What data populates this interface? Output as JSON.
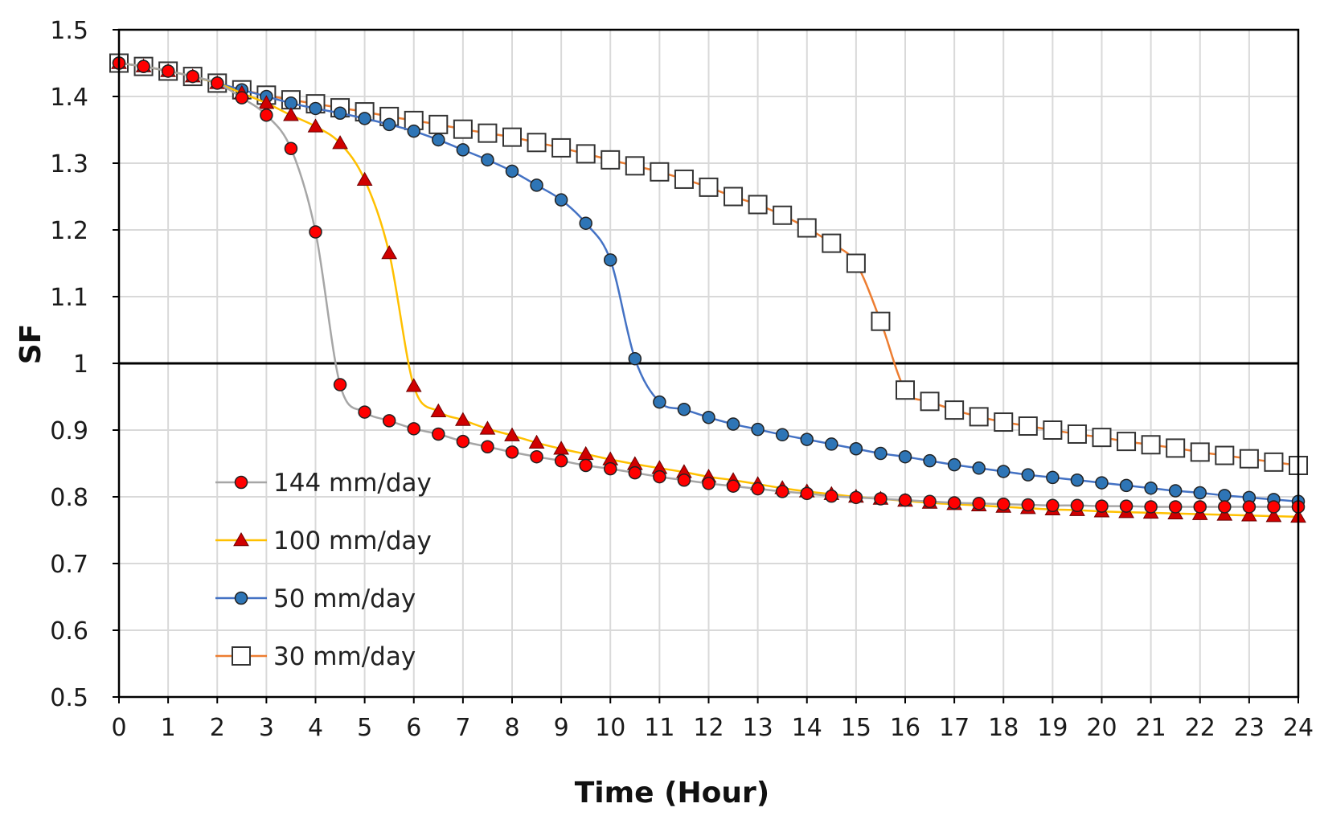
{
  "chart_data": {
    "type": "line",
    "title": "",
    "xlabel": "Time (Hour)",
    "ylabel": "SF",
    "xlim": [
      0,
      24
    ],
    "ylim": [
      0.5,
      1.5
    ],
    "x_ticks": [
      0,
      1,
      2,
      3,
      4,
      5,
      6,
      7,
      8,
      9,
      10,
      11,
      12,
      13,
      14,
      15,
      16,
      17,
      18,
      19,
      20,
      21,
      22,
      23,
      24
    ],
    "y_ticks": [
      0.5,
      0.6,
      0.7,
      0.8,
      0.9,
      1.0,
      1.1,
      1.2,
      1.3,
      1.4,
      1.5
    ],
    "y_tick_labels": [
      "0.5",
      "0.6",
      "0.7",
      "0.8",
      "0.9",
      "1",
      "1.1",
      "1.2",
      "1.3",
      "1.4",
      "1.5"
    ],
    "reference_line": {
      "y": 1.0,
      "color": "#000000"
    },
    "grid": true,
    "legend_position": "bottom-left",
    "series": [
      {
        "name": "144 mm/day",
        "line_color": "#a6a6a6",
        "marker": "circle",
        "marker_fill": "#ff0000",
        "x": [
          0,
          0.5,
          1,
          1.5,
          2,
          2.5,
          3,
          3.5,
          4,
          4.5,
          5,
          5.5,
          6,
          6.5,
          7,
          7.5,
          8,
          8.5,
          9,
          9.5,
          10,
          10.5,
          11,
          11.5,
          12,
          12.5,
          13,
          13.5,
          14,
          14.5,
          15,
          15.5,
          16,
          16.5,
          17,
          17.5,
          18,
          18.5,
          19,
          19.5,
          20,
          20.5,
          21,
          21.5,
          22,
          22.5,
          23,
          23.5,
          24
        ],
        "values": [
          1.45,
          1.445,
          1.438,
          1.43,
          1.42,
          1.398,
          1.372,
          1.322,
          1.197,
          0.968,
          0.927,
          0.914,
          0.902,
          0.894,
          0.883,
          0.875,
          0.867,
          0.86,
          0.854,
          0.847,
          0.842,
          0.836,
          0.83,
          0.825,
          0.82,
          0.816,
          0.812,
          0.808,
          0.805,
          0.801,
          0.799,
          0.797,
          0.795,
          0.793,
          0.791,
          0.79,
          0.789,
          0.788,
          0.787,
          0.787,
          0.786,
          0.786,
          0.785,
          0.785,
          0.785,
          0.785,
          0.785,
          0.785,
          0.785
        ]
      },
      {
        "name": "100 mm/day",
        "line_color": "#ffc000",
        "marker": "triangle",
        "marker_fill": "#d00000",
        "x": [
          0,
          0.5,
          1,
          1.5,
          2,
          2.5,
          3,
          3.5,
          4,
          4.5,
          5,
          5.5,
          6,
          6.5,
          7,
          7.5,
          8,
          8.5,
          9,
          9.5,
          10,
          10.5,
          11,
          11.5,
          12,
          12.5,
          13,
          13.5,
          14,
          14.5,
          15,
          15.5,
          16,
          16.5,
          17,
          17.5,
          18,
          18.5,
          19,
          19.5,
          20,
          20.5,
          21,
          21.5,
          22,
          22.5,
          23,
          23.5,
          24
        ],
        "values": [
          1.45,
          1.445,
          1.438,
          1.43,
          1.42,
          1.405,
          1.39,
          1.372,
          1.355,
          1.33,
          1.275,
          1.165,
          0.966,
          0.928,
          0.915,
          0.902,
          0.892,
          0.881,
          0.872,
          0.864,
          0.856,
          0.849,
          0.843,
          0.837,
          0.83,
          0.825,
          0.819,
          0.813,
          0.808,
          0.804,
          0.8,
          0.797,
          0.794,
          0.791,
          0.789,
          0.787,
          0.785,
          0.783,
          0.781,
          0.78,
          0.778,
          0.777,
          0.776,
          0.775,
          0.774,
          0.773,
          0.772,
          0.771,
          0.77
        ]
      },
      {
        "name": "50 mm/day",
        "line_color": "#4472c4",
        "marker": "circle",
        "marker_fill": "#2e75b6",
        "x": [
          0,
          0.5,
          1,
          1.5,
          2,
          2.5,
          3,
          3.5,
          4,
          4.5,
          5,
          5.5,
          6,
          6.5,
          7,
          7.5,
          8,
          8.5,
          9,
          9.5,
          10,
          10.5,
          11,
          11.5,
          12,
          12.5,
          13,
          13.5,
          14,
          14.5,
          15,
          15.5,
          16,
          16.5,
          17,
          17.5,
          18,
          18.5,
          19,
          19.5,
          20,
          20.5,
          21,
          21.5,
          22,
          22.5,
          23,
          23.5,
          24
        ],
        "values": [
          1.45,
          1.445,
          1.438,
          1.43,
          1.42,
          1.41,
          1.4,
          1.39,
          1.382,
          1.375,
          1.367,
          1.358,
          1.348,
          1.335,
          1.32,
          1.305,
          1.288,
          1.267,
          1.245,
          1.21,
          1.155,
          1.007,
          0.942,
          0.931,
          0.919,
          0.909,
          0.901,
          0.893,
          0.886,
          0.879,
          0.872,
          0.865,
          0.86,
          0.854,
          0.848,
          0.843,
          0.838,
          0.833,
          0.829,
          0.825,
          0.821,
          0.817,
          0.813,
          0.809,
          0.806,
          0.802,
          0.799,
          0.796,
          0.793
        ]
      },
      {
        "name": "30 mm/day",
        "line_color": "#ed7d31",
        "marker": "square",
        "marker_fill": "#ffffff",
        "x": [
          0,
          0.5,
          1,
          1.5,
          2,
          2.5,
          3,
          3.5,
          4,
          4.5,
          5,
          5.5,
          6,
          6.5,
          7,
          7.5,
          8,
          8.5,
          9,
          9.5,
          10,
          10.5,
          11,
          11.5,
          12,
          12.5,
          13,
          13.5,
          14,
          14.5,
          15,
          15.5,
          16,
          16.5,
          17,
          17.5,
          18,
          18.5,
          19,
          19.5,
          20,
          20.5,
          21,
          21.5,
          22,
          22.5,
          23,
          23.5,
          24
        ],
        "values": [
          1.45,
          1.445,
          1.438,
          1.43,
          1.42,
          1.41,
          1.402,
          1.395,
          1.389,
          1.383,
          1.377,
          1.37,
          1.364,
          1.358,
          1.351,
          1.345,
          1.339,
          1.331,
          1.323,
          1.314,
          1.305,
          1.296,
          1.287,
          1.276,
          1.264,
          1.25,
          1.238,
          1.222,
          1.203,
          1.18,
          1.15,
          1.063,
          0.96,
          0.943,
          0.93,
          0.92,
          0.912,
          0.906,
          0.9,
          0.894,
          0.889,
          0.883,
          0.878,
          0.873,
          0.867,
          0.862,
          0.857,
          0.852,
          0.847
        ]
      }
    ]
  }
}
